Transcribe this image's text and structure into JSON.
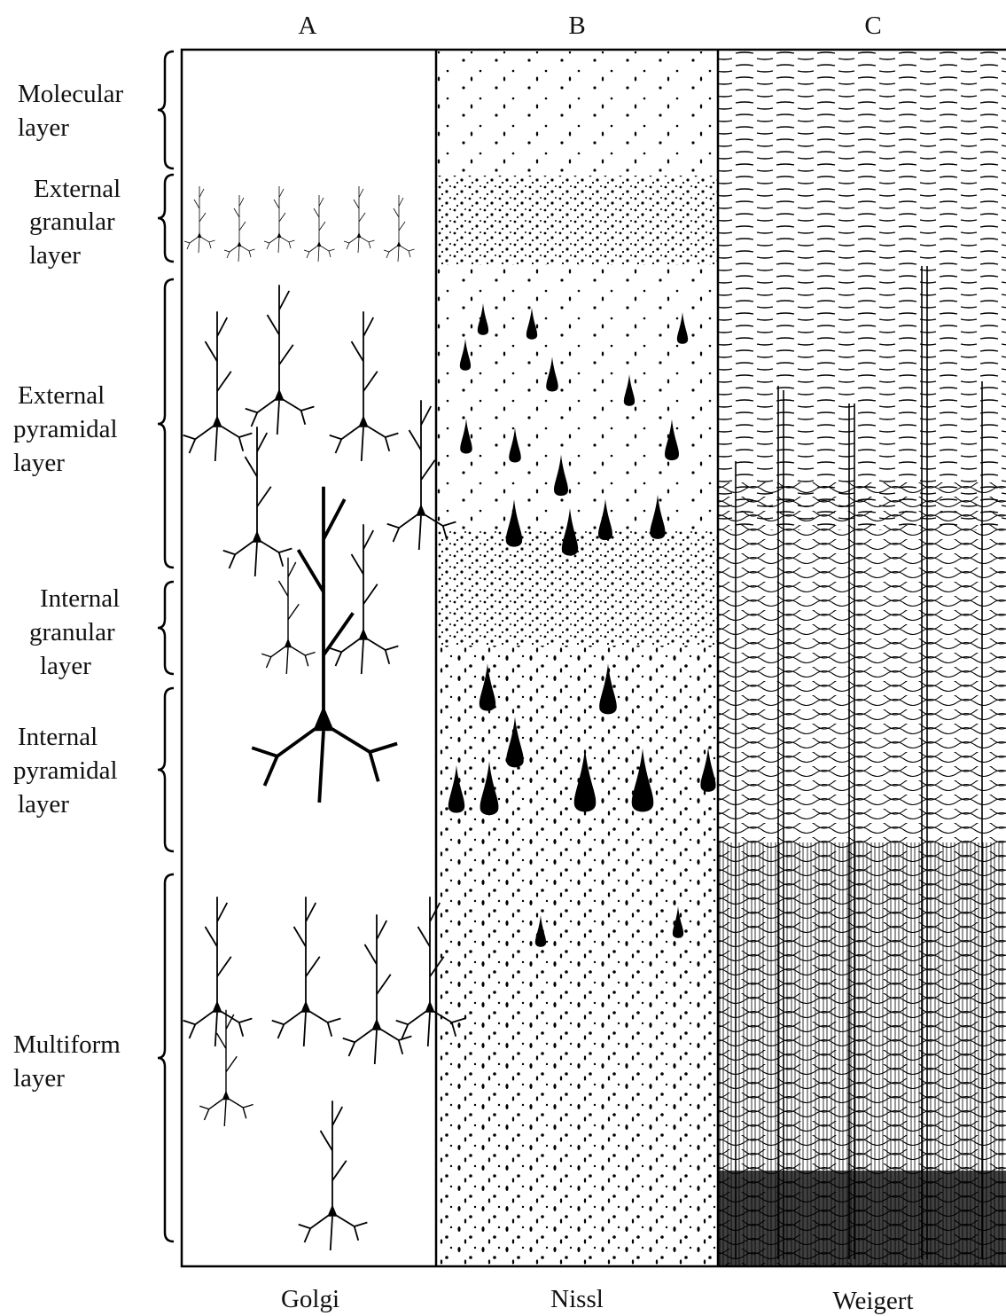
{
  "columns": [
    {
      "letter": "A",
      "stain": "Golgi"
    },
    {
      "letter": "B",
      "stain": "Nissl"
    },
    {
      "letter": "C",
      "stain": "Weigert"
    }
  ],
  "layers": [
    {
      "lines": [
        "Molecular",
        "layer"
      ]
    },
    {
      "lines": [
        "External",
        "granular",
        "layer"
      ]
    },
    {
      "lines": [
        "External",
        "pyramidal",
        "layer"
      ]
    },
    {
      "lines": [
        "Internal",
        "granular",
        "layer"
      ]
    },
    {
      "lines": [
        "Internal",
        "pyramidal",
        "layer"
      ]
    },
    {
      "lines": [
        "Multiform",
        "layer"
      ]
    }
  ]
}
